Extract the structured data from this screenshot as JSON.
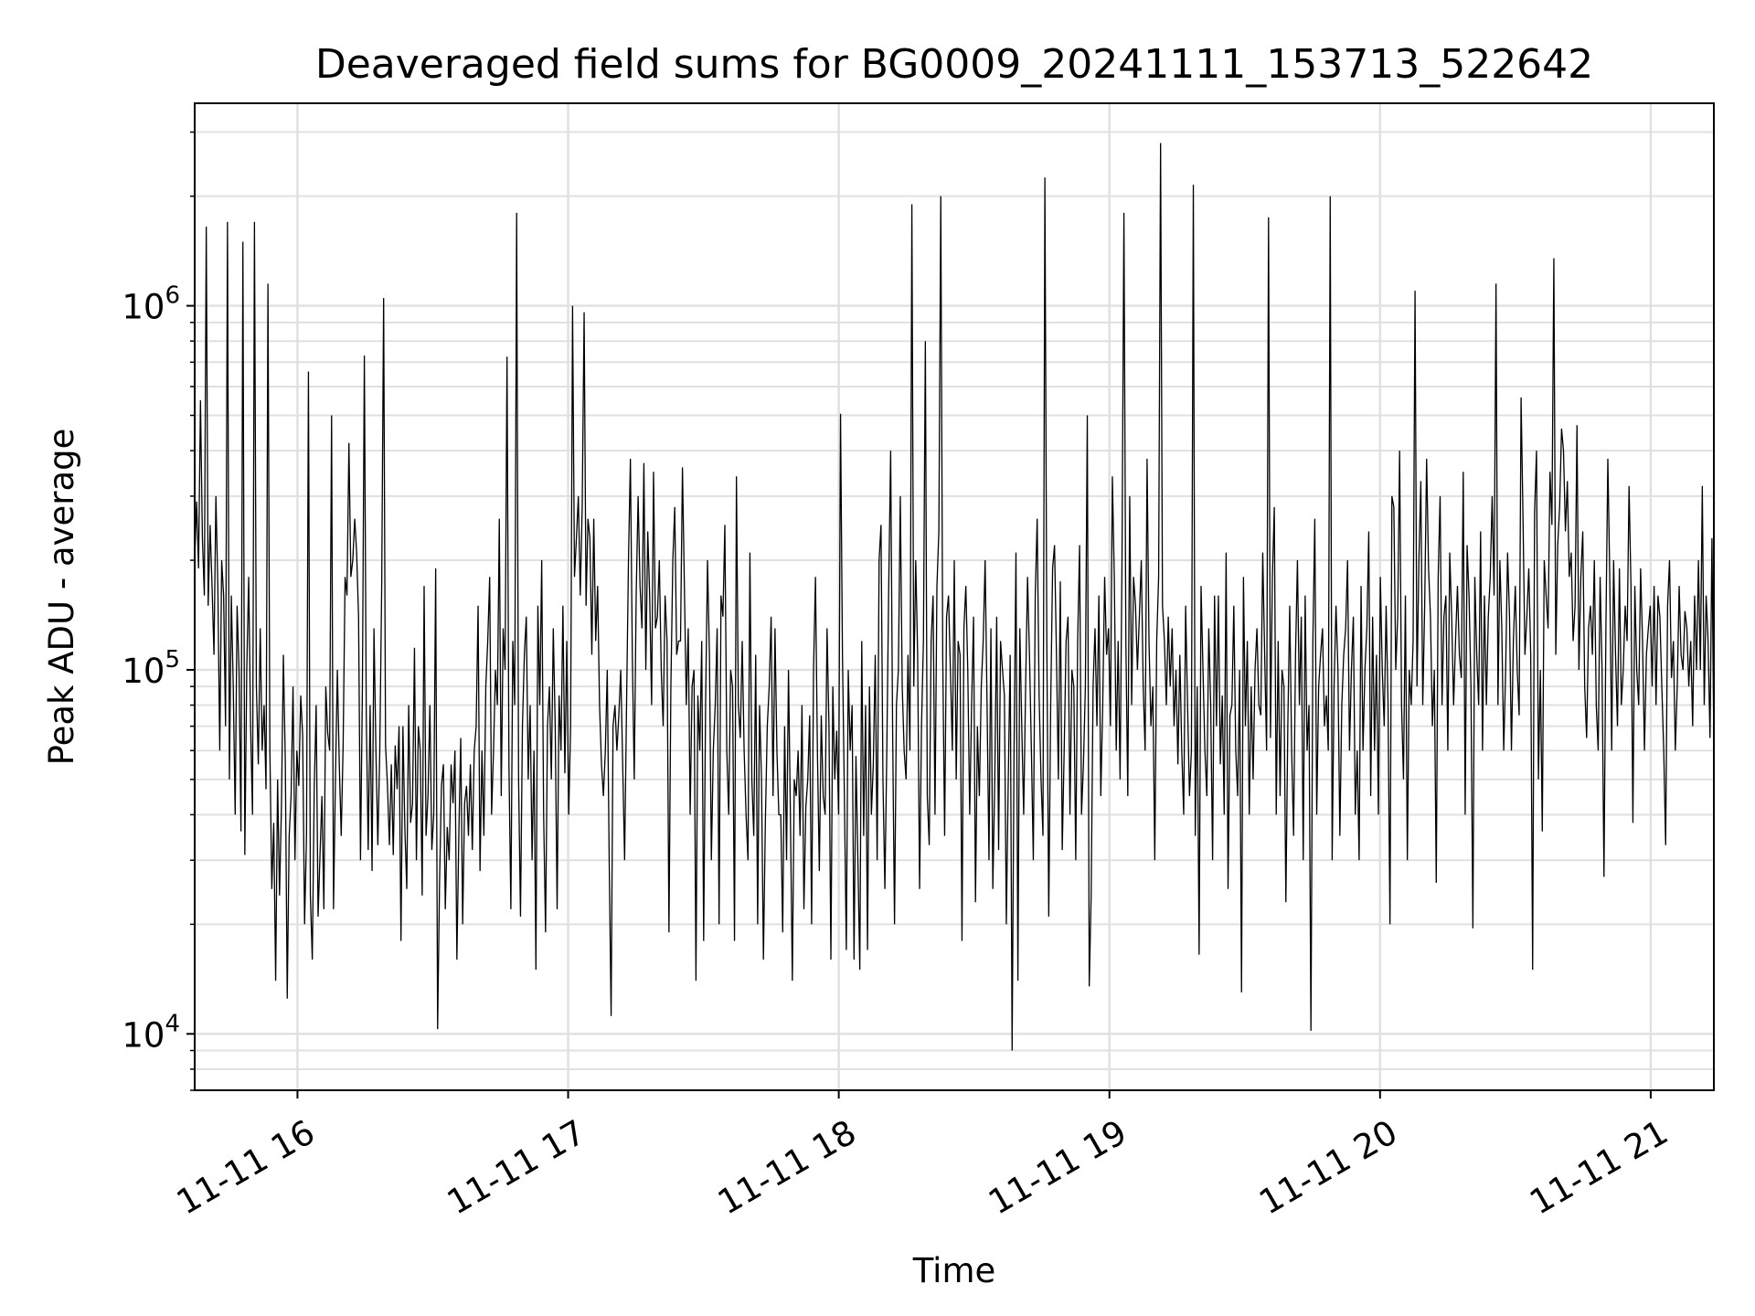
{
  "chart_data": {
    "type": "line",
    "title": "Deaveraged field sums for BG0009_20241111_153713_522642",
    "xlabel": "Time",
    "ylabel": "Peak ADU - average",
    "yscale": "log",
    "ylim": [
      7000,
      3600000
    ],
    "xlim": [
      "2024-11-11T15:37:13",
      "2024-11-11T21:14:00"
    ],
    "grid": true,
    "line_color": "#000000",
    "x_ticks": [
      {
        "value": "2024-11-11T16:00:00",
        "label": "11-11 16"
      },
      {
        "value": "2024-11-11T17:00:00",
        "label": "11-11 17"
      },
      {
        "value": "2024-11-11T18:00:00",
        "label": "11-11 18"
      },
      {
        "value": "2024-11-11T19:00:00",
        "label": "11-11 19"
      },
      {
        "value": "2024-11-11T20:00:00",
        "label": "11-11 20"
      },
      {
        "value": "2024-11-11T21:00:00",
        "label": "11-11 21"
      }
    ],
    "y_ticks": [
      {
        "value": 10000,
        "base": "10",
        "exp": "4"
      },
      {
        "value": 100000,
        "base": "10",
        "exp": "5"
      },
      {
        "value": 1000000,
        "base": "10",
        "exp": "6"
      }
    ],
    "series": [
      {
        "x_start": "2024-11-11T15:37:13",
        "x_end": "2024-11-11T21:14:00",
        "sampling": "evenly spaced in time",
        "values": [
          200000,
          290000,
          190000,
          550000,
          230000,
          160000,
          1650000,
          150000,
          250000,
          170000,
          110000,
          300000,
          170000,
          60000,
          200000,
          160000,
          70000,
          1700000,
          50000,
          160000,
          90000,
          40000,
          150000,
          100000,
          36000,
          1500000,
          31000,
          100000,
          180000,
          70000,
          40000,
          1700000,
          90000,
          55000,
          130000,
          60000,
          80000,
          47000,
          1150000,
          60000,
          25000,
          38000,
          14000,
          50000,
          24000,
          42000,
          110000,
          56000,
          12500,
          35000,
          45000,
          90000,
          30000,
          60000,
          48000,
          85000,
          66000,
          20000,
          35000,
          660000,
          24000,
          16000,
          47000,
          80000,
          21000,
          31000,
          45000,
          22000,
          90000,
          67000,
          60000,
          500000,
          22000,
          50000,
          100000,
          55000,
          35000,
          62000,
          180000,
          160000,
          420000,
          180000,
          200000,
          260000,
          210000,
          140000,
          30000,
          90000,
          730000,
          75000,
          32000,
          80000,
          28000,
          130000,
          60000,
          33000,
          60000,
          170000,
          1050000,
          62000,
          48000,
          33000,
          55000,
          31000,
          62000,
          47000,
          70000,
          18000,
          70000,
          37000,
          25000,
          80000,
          38000,
          43000,
          115000,
          30000,
          70000,
          60000,
          24000,
          170000,
          35000,
          45000,
          80000,
          32000,
          40000,
          190000,
          10300,
          26000,
          48000,
          55000,
          22000,
          37000,
          30000,
          55000,
          43000,
          60000,
          16000,
          35000,
          65000,
          20000,
          43000,
          48000,
          35000,
          55000,
          32000,
          60000,
          70000,
          150000,
          28000,
          60000,
          35000,
          90000,
          120000,
          180000,
          40000,
          60000,
          100000,
          80000,
          260000,
          45000,
          130000,
          100000,
          725000,
          55000,
          22000,
          120000,
          80000,
          1800000,
          50000,
          21000,
          70000,
          110000,
          140000,
          50000,
          80000,
          30000,
          60000,
          15000,
          150000,
          80000,
          200000,
          40000,
          19000,
          70000,
          90000,
          50000,
          130000,
          70000,
          22000,
          85000,
          60000,
          150000,
          52000,
          120000,
          40000,
          70000,
          1000000,
          180000,
          230000,
          300000,
          160000,
          280000,
          960000,
          150000,
          260000,
          230000,
          110000,
          260000,
          120000,
          170000,
          80000,
          55000,
          45000,
          60000,
          100000,
          30000,
          11200,
          70000,
          80000,
          60000,
          75000,
          100000,
          55000,
          30000,
          80000,
          200000,
          380000,
          110000,
          50000,
          160000,
          300000,
          170000,
          130000,
          370000,
          100000,
          240000,
          160000,
          80000,
          350000,
          130000,
          140000,
          200000,
          100000,
          70000,
          160000,
          120000,
          19000,
          90000,
          200000,
          280000,
          110000,
          120000,
          120000,
          360000,
          170000,
          80000,
          130000,
          40000,
          90000,
          100000,
          14000,
          85000,
          60000,
          120000,
          18000,
          80000,
          200000,
          110000,
          30000,
          60000,
          80000,
          130000,
          20000,
          160000,
          140000,
          250000,
          60000,
          40000,
          100000,
          90000,
          18000,
          340000,
          80000,
          65000,
          120000,
          60000,
          40000,
          30000,
          210000,
          50000,
          35000,
          110000,
          20000,
          80000,
          50000,
          16000,
          38000,
          70000,
          90000,
          140000,
          45000,
          130000,
          60000,
          40000,
          40000,
          19000,
          70000,
          30000,
          100000,
          40000,
          14000,
          50000,
          45000,
          60000,
          35000,
          80000,
          22000,
          42000,
          50000,
          75000,
          20000,
          100000,
          180000,
          60000,
          28000,
          75000,
          45000,
          40000,
          130000,
          70000,
          16000,
          90000,
          50000,
          68000,
          40000,
          505000,
          110000,
          45000,
          17000,
          100000,
          60000,
          80000,
          16000,
          58000,
          30000,
          15000,
          120000,
          35000,
          80000,
          17000,
          90000,
          40000,
          55000,
          110000,
          30000,
          200000,
          250000,
          50000,
          25000,
          60000,
          170000,
          400000,
          70000,
          20000,
          80000,
          100000,
          300000,
          90000,
          60000,
          50000,
          110000,
          60000,
          1900000,
          90000,
          200000,
          110000,
          25000,
          70000,
          120000,
          800000,
          45000,
          33000,
          120000,
          160000,
          40000,
          170000,
          240000,
          2000000,
          110000,
          35000,
          140000,
          160000,
          100000,
          60000,
          200000,
          50000,
          120000,
          110000,
          18000,
          130000,
          170000,
          100000,
          40000,
          80000,
          140000,
          23000,
          70000,
          45000,
          90000,
          120000,
          200000,
          80000,
          30000,
          130000,
          25000,
          50000,
          140000,
          32000,
          120000,
          100000,
          85000,
          20000,
          50000,
          110000,
          9000,
          60000,
          210000,
          14000,
          130000,
          70000,
          40000,
          90000,
          180000,
          110000,
          60000,
          30000,
          160000,
          260000,
          85000,
          50000,
          35000,
          2250000,
          120000,
          21000,
          80000,
          190000,
          220000,
          110000,
          50000,
          175000,
          32000,
          60000,
          120000,
          140000,
          40000,
          100000,
          90000,
          30000,
          120000,
          220000,
          40000,
          55000,
          90000,
          500000,
          13500,
          24000,
          90000,
          130000,
          70000,
          160000,
          45000,
          80000,
          180000,
          110000,
          130000,
          70000,
          340000,
          180000,
          60000,
          120000,
          50000,
          200000,
          1800000,
          120000,
          45000,
          300000,
          80000,
          180000,
          150000,
          100000,
          140000,
          200000,
          90000,
          60000,
          380000,
          120000,
          70000,
          90000,
          30000,
          120000,
          180000,
          2800000,
          150000,
          120000,
          80000,
          140000,
          90000,
          130000,
          70000,
          100000,
          55000,
          110000,
          60000,
          40000,
          150000,
          80000,
          45000,
          60000,
          2150000,
          35000,
          90000,
          16500,
          170000,
          100000,
          60000,
          45000,
          130000,
          80000,
          30000,
          160000,
          70000,
          160000,
          55000,
          85000,
          40000,
          210000,
          25000,
          75000,
          80000,
          150000,
          60000,
          45000,
          100000,
          13000,
          180000,
          70000,
          120000,
          40000,
          90000,
          50000,
          100000,
          130000,
          80000,
          75000,
          210000,
          110000,
          60000,
          1750000,
          65000,
          180000,
          280000,
          40000,
          120000,
          45000,
          100000,
          90000,
          23000,
          70000,
          150000,
          60000,
          35000,
          110000,
          200000,
          80000,
          140000,
          30000,
          160000,
          60000,
          80000,
          10200,
          120000,
          260000,
          40000,
          90000,
          110000,
          130000,
          70000,
          85000,
          60000,
          2000000,
          30000,
          90000,
          150000,
          100000,
          35000,
          80000,
          110000,
          130000,
          200000,
          60000,
          100000,
          140000,
          40000,
          60000,
          30000,
          170000,
          60000,
          100000,
          130000,
          240000,
          45000,
          140000,
          60000,
          110000,
          40000,
          180000,
          100000,
          70000,
          150000,
          80000,
          20000,
          300000,
          280000,
          100000,
          140000,
          400000,
          80000,
          50000,
          160000,
          30000,
          100000,
          80000,
          120000,
          1100000,
          90000,
          200000,
          330000,
          80000,
          150000,
          380000,
          190000,
          140000,
          70000,
          100000,
          26000,
          180000,
          300000,
          80000,
          140000,
          160000,
          60000,
          210000,
          140000,
          80000,
          120000,
          170000,
          110000,
          95000,
          350000,
          40000,
          220000,
          160000,
          90000,
          19500,
          180000,
          110000,
          80000,
          240000,
          60000,
          160000,
          80000,
          140000,
          180000,
          300000,
          160000,
          1150000,
          80000,
          200000,
          130000,
          60000,
          100000,
          210000,
          140000,
          60000,
          120000,
          170000,
          100000,
          75000,
          560000,
          260000,
          110000,
          140000,
          190000,
          110000,
          15000,
          270000,
          400000,
          50000,
          100000,
          36000,
          200000,
          160000,
          130000,
          350000,
          250000,
          1350000,
          110000,
          220000,
          280000,
          460000,
          400000,
          240000,
          330000,
          180000,
          210000,
          120000,
          150000,
          470000,
          100000,
          180000,
          240000,
          90000,
          65000,
          130000,
          150000,
          110000,
          200000,
          80000,
          60000,
          180000,
          100000,
          27000,
          130000,
          380000,
          180000,
          60000,
          200000,
          110000,
          70000,
          190000,
          80000,
          100000,
          150000,
          120000,
          320000,
          170000,
          38000,
          170000,
          100000,
          80000,
          190000,
          120000,
          60000,
          110000,
          130000,
          150000,
          90000,
          170000,
          80000,
          160000,
          140000,
          90000,
          60000,
          33000,
          150000,
          200000,
          95000,
          120000,
          60000,
          90000,
          170000,
          110000,
          100000,
          145000,
          130000,
          90000,
          120000,
          70000,
          160000,
          100000,
          200000,
          100000,
          320000,
          80000,
          160000,
          120000,
          65000,
          230000,
          60000
        ]
      }
    ]
  }
}
